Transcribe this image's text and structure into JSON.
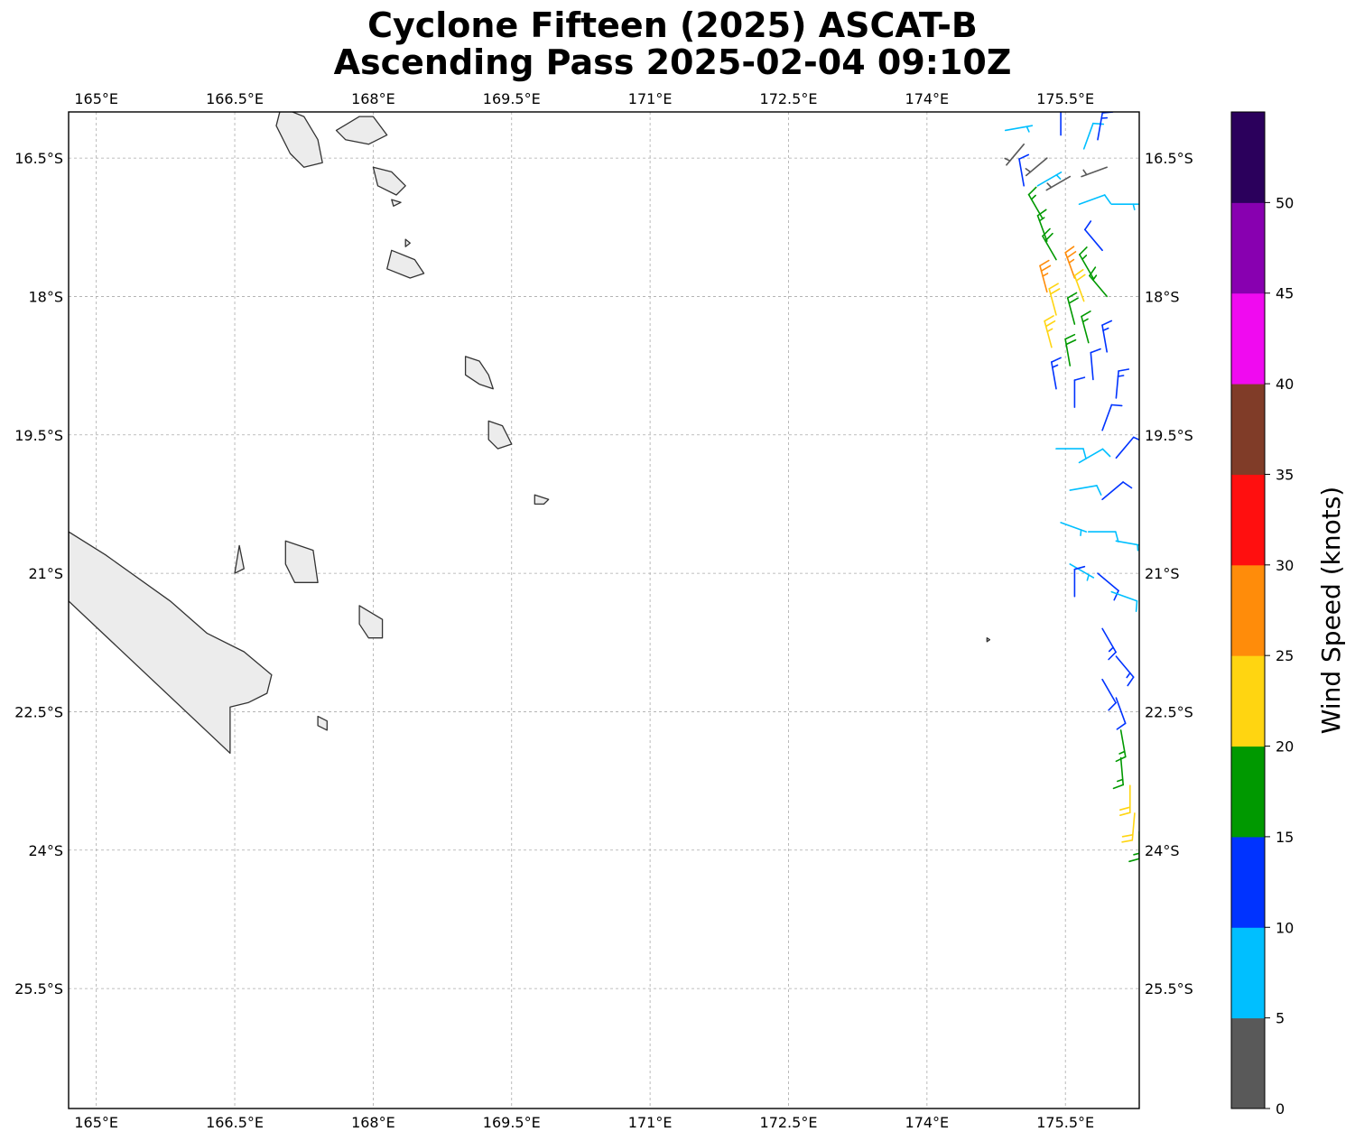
{
  "title": {
    "line1": "Cyclone Fifteen (2025) ASCAT-B",
    "line2": "Ascending Pass 2025-02-04 09:10Z"
  },
  "map": {
    "projection": "lat-lon",
    "lon_range": [
      164.7,
      176.3
    ],
    "lat_range": [
      -16.0,
      -26.8
    ],
    "lon_ticks": [
      {
        "value": 165.0,
        "label": "165°E"
      },
      {
        "value": 166.5,
        "label": "166.5°E"
      },
      {
        "value": 168.0,
        "label": "168°E"
      },
      {
        "value": 169.5,
        "label": "169.5°E"
      },
      {
        "value": 171.0,
        "label": "171°E"
      },
      {
        "value": 172.5,
        "label": "172.5°E"
      },
      {
        "value": 174.0,
        "label": "174°E"
      },
      {
        "value": 175.5,
        "label": "175.5°E"
      }
    ],
    "lat_ticks": [
      {
        "value": -16.5,
        "label": "16.5°S"
      },
      {
        "value": -18.0,
        "label": "18°S"
      },
      {
        "value": -19.5,
        "label": "19.5°S"
      },
      {
        "value": -21.0,
        "label": "21°S"
      },
      {
        "value": -22.5,
        "label": "22.5°S"
      },
      {
        "value": -24.0,
        "label": "24°S"
      },
      {
        "value": -25.5,
        "label": "25.5°S"
      }
    ],
    "gridlines": true,
    "coastline_color": "#333333"
  },
  "colorbar": {
    "label": "Wind Speed (knots)",
    "bins": [
      {
        "from": 0,
        "to": 5,
        "color": "#595959"
      },
      {
        "from": 5,
        "to": 10,
        "color": "#00bfff"
      },
      {
        "from": 10,
        "to": 15,
        "color": "#0033ff"
      },
      {
        "from": 15,
        "to": 20,
        "color": "#009900"
      },
      {
        "from": 20,
        "to": 25,
        "color": "#ffd511"
      },
      {
        "from": 25,
        "to": 30,
        "color": "#ff8c0a"
      },
      {
        "from": 30,
        "to": 35,
        "color": "#ff0f0f"
      },
      {
        "from": 35,
        "to": 40,
        "color": "#803c28"
      },
      {
        "from": 40,
        "to": 45,
        "color": "#f00af0"
      },
      {
        "from": 45,
        "to": 50,
        "color": "#8800b0"
      },
      {
        "from": 50,
        "to": 55,
        "color": "#2b005c"
      }
    ],
    "tick_labels": [
      "0",
      "5",
      "10",
      "15",
      "20",
      "25",
      "30",
      "35",
      "40",
      "45",
      "50"
    ]
  },
  "wind_barbs": [
    {
      "lon": 175.3,
      "lat": -16.5,
      "speed": 3,
      "dir": 230
    },
    {
      "lon": 175.55,
      "lat": -16.7,
      "speed": 3,
      "dir": 240
    },
    {
      "lon": 175.95,
      "lat": -16.6,
      "speed": 4,
      "dir": 250
    },
    {
      "lon": 175.05,
      "lat": -16.35,
      "speed": 3,
      "dir": 220
    },
    {
      "lon": 174.85,
      "lat": -16.2,
      "speed": 7,
      "dir": 80
    },
    {
      "lon": 175.2,
      "lat": -16.8,
      "speed": 7,
      "dir": 60
    },
    {
      "lon": 175.7,
      "lat": -16.4,
      "speed": 8,
      "dir": 20
    },
    {
      "lon": 176.0,
      "lat": -17.0,
      "speed": 7,
      "dir": 90
    },
    {
      "lon": 175.65,
      "lat": -17.0,
      "speed": 8,
      "dir": 70
    },
    {
      "lon": 175.05,
      "lat": -16.8,
      "speed": 12,
      "dir": 350
    },
    {
      "lon": 175.45,
      "lat": -16.25,
      "speed": 12,
      "dir": 0
    },
    {
      "lon": 175.85,
      "lat": -16.3,
      "speed": 13,
      "dir": 10
    },
    {
      "lon": 175.25,
      "lat": -17.15,
      "speed": 17,
      "dir": 330
    },
    {
      "lon": 175.3,
      "lat": -17.4,
      "speed": 17,
      "dir": 340
    },
    {
      "lon": 175.4,
      "lat": -17.6,
      "speed": 18,
      "dir": 330
    },
    {
      "lon": 175.9,
      "lat": -17.5,
      "speed": 12,
      "dir": 320
    },
    {
      "lon": 175.8,
      "lat": -17.8,
      "speed": 17,
      "dir": 330
    },
    {
      "lon": 175.95,
      "lat": -18.0,
      "speed": 16,
      "dir": 320
    },
    {
      "lon": 175.6,
      "lat": -17.8,
      "speed": 27,
      "dir": 340
    },
    {
      "lon": 175.3,
      "lat": -17.95,
      "speed": 26,
      "dir": 345
    },
    {
      "lon": 175.4,
      "lat": -18.2,
      "speed": 22,
      "dir": 345
    },
    {
      "lon": 175.7,
      "lat": -18.05,
      "speed": 22,
      "dir": 340
    },
    {
      "lon": 175.35,
      "lat": -18.55,
      "speed": 23,
      "dir": 345
    },
    {
      "lon": 175.6,
      "lat": -18.3,
      "speed": 19,
      "dir": 345
    },
    {
      "lon": 175.75,
      "lat": -18.5,
      "speed": 17,
      "dir": 345
    },
    {
      "lon": 175.55,
      "lat": -18.75,
      "speed": 18,
      "dir": 350
    },
    {
      "lon": 175.95,
      "lat": -18.6,
      "speed": 13,
      "dir": 350
    },
    {
      "lon": 175.8,
      "lat": -18.9,
      "speed": 12,
      "dir": 355
    },
    {
      "lon": 175.4,
      "lat": -19.0,
      "speed": 13,
      "dir": 350
    },
    {
      "lon": 175.6,
      "lat": -19.2,
      "speed": 12,
      "dir": 0
    },
    {
      "lon": 176.05,
      "lat": -19.1,
      "speed": 13,
      "dir": 5
    },
    {
      "lon": 175.9,
      "lat": -19.45,
      "speed": 11,
      "dir": 20
    },
    {
      "lon": 175.4,
      "lat": -19.65,
      "speed": 8,
      "dir": 90
    },
    {
      "lon": 175.65,
      "lat": -19.8,
      "speed": 8,
      "dir": 60
    },
    {
      "lon": 176.05,
      "lat": -19.75,
      "speed": 12,
      "dir": 40
    },
    {
      "lon": 175.55,
      "lat": -20.1,
      "speed": 8,
      "dir": 80
    },
    {
      "lon": 175.9,
      "lat": -20.2,
      "speed": 12,
      "dir": 50
    },
    {
      "lon": 175.45,
      "lat": -20.45,
      "speed": 7,
      "dir": 110
    },
    {
      "lon": 175.75,
      "lat": -20.55,
      "speed": 8,
      "dir": 90
    },
    {
      "lon": 176.05,
      "lat": -20.65,
      "speed": 7,
      "dir": 100
    },
    {
      "lon": 175.55,
      "lat": -20.9,
      "speed": 7,
      "dir": 120
    },
    {
      "lon": 175.85,
      "lat": -21.0,
      "speed": 12,
      "dir": 130
    },
    {
      "lon": 176.0,
      "lat": -21.2,
      "speed": 8,
      "dir": 110
    },
    {
      "lon": 175.6,
      "lat": -21.25,
      "speed": 12,
      "dir": 0
    },
    {
      "lon": 175.9,
      "lat": -21.6,
      "speed": 13,
      "dir": 150
    },
    {
      "lon": 176.05,
      "lat": -21.9,
      "speed": 13,
      "dir": 140
    },
    {
      "lon": 175.9,
      "lat": -22.15,
      "speed": 12,
      "dir": 150
    },
    {
      "lon": 176.05,
      "lat": -22.35,
      "speed": 12,
      "dir": 160
    },
    {
      "lon": 176.1,
      "lat": -22.7,
      "speed": 17,
      "dir": 170
    },
    {
      "lon": 176.1,
      "lat": -23.0,
      "speed": 17,
      "dir": 175
    },
    {
      "lon": 176.2,
      "lat": -23.3,
      "speed": 22,
      "dir": 180
    },
    {
      "lon": 176.25,
      "lat": -23.6,
      "speed": 22,
      "dir": 185
    },
    {
      "lon": 176.3,
      "lat": -23.8,
      "speed": 17,
      "dir": 180
    }
  ],
  "islands": [
    {
      "name": "",
      "points": [
        [
          166.45,
          -22.95
        ],
        [
          164.7,
          -21.3
        ],
        [
          164.7,
          -20.55
        ],
        [
          165.1,
          -20.8
        ],
        [
          165.8,
          -21.3
        ],
        [
          166.2,
          -21.65
        ],
        [
          166.6,
          -21.85
        ],
        [
          166.9,
          -22.1
        ],
        [
          166.85,
          -22.3
        ],
        [
          166.65,
          -22.4
        ],
        [
          166.45,
          -22.45
        ]
      ]
    },
    {
      "name": "",
      "points": [
        [
          167.0,
          -15.95
        ],
        [
          167.25,
          -16.05
        ],
        [
          167.4,
          -16.3
        ],
        [
          167.45,
          -16.55
        ],
        [
          167.25,
          -16.6
        ],
        [
          167.1,
          -16.45
        ],
        [
          166.95,
          -16.15
        ]
      ]
    },
    {
      "name": "",
      "points": [
        [
          167.6,
          -16.2
        ],
        [
          167.85,
          -16.05
        ],
        [
          168.0,
          -16.05
        ],
        [
          168.15,
          -16.25
        ],
        [
          167.95,
          -16.35
        ],
        [
          167.7,
          -16.3
        ]
      ]
    },
    {
      "name": "",
      "points": [
        [
          168.0,
          -16.6
        ],
        [
          168.2,
          -16.65
        ],
        [
          168.35,
          -16.8
        ],
        [
          168.25,
          -16.9
        ],
        [
          168.05,
          -16.8
        ]
      ]
    },
    {
      "name": "",
      "points": [
        [
          168.2,
          -17.5
        ],
        [
          168.45,
          -17.6
        ],
        [
          168.55,
          -17.75
        ],
        [
          168.4,
          -17.8
        ],
        [
          168.15,
          -17.7
        ]
      ]
    },
    {
      "name": "",
      "points": [
        [
          169.0,
          -18.65
        ],
        [
          169.15,
          -18.7
        ],
        [
          169.25,
          -18.85
        ],
        [
          169.3,
          -19.0
        ],
        [
          169.15,
          -18.95
        ],
        [
          169.0,
          -18.85
        ]
      ]
    },
    {
      "name": "",
      "points": [
        [
          169.25,
          -19.35
        ],
        [
          169.4,
          -19.4
        ],
        [
          169.5,
          -19.6
        ],
        [
          169.35,
          -19.65
        ],
        [
          169.25,
          -19.55
        ]
      ]
    },
    {
      "name": "",
      "points": [
        [
          169.75,
          -20.15
        ],
        [
          169.9,
          -20.2
        ],
        [
          169.85,
          -20.25
        ],
        [
          169.75,
          -20.25
        ]
      ]
    },
    {
      "name": "",
      "points": [
        [
          167.05,
          -20.65
        ],
        [
          167.35,
          -20.75
        ],
        [
          167.4,
          -21.1
        ],
        [
          167.15,
          -21.1
        ],
        [
          167.05,
          -20.9
        ]
      ]
    },
    {
      "name": "",
      "points": [
        [
          166.55,
          -20.7
        ],
        [
          166.6,
          -20.95
        ],
        [
          166.5,
          -21.0
        ]
      ]
    },
    {
      "name": "",
      "points": [
        [
          167.85,
          -21.35
        ],
        [
          168.1,
          -21.5
        ],
        [
          168.1,
          -21.7
        ],
        [
          167.95,
          -21.7
        ],
        [
          167.85,
          -21.55
        ]
      ]
    },
    {
      "name": "",
      "points": [
        [
          167.4,
          -22.55
        ],
        [
          167.5,
          -22.6
        ],
        [
          167.5,
          -22.7
        ],
        [
          167.4,
          -22.65
        ]
      ]
    },
    {
      "name": "",
      "points": [
        [
          168.2,
          -16.95
        ],
        [
          168.3,
          -16.98
        ],
        [
          168.22,
          -17.02
        ]
      ]
    },
    {
      "name": "",
      "points": [
        [
          168.35,
          -17.38
        ],
        [
          168.4,
          -17.42
        ],
        [
          168.35,
          -17.46
        ]
      ]
    },
    {
      "name": "",
      "points": [
        [
          174.65,
          -21.7
        ],
        [
          174.68,
          -21.72
        ],
        [
          174.65,
          -21.74
        ]
      ]
    }
  ]
}
